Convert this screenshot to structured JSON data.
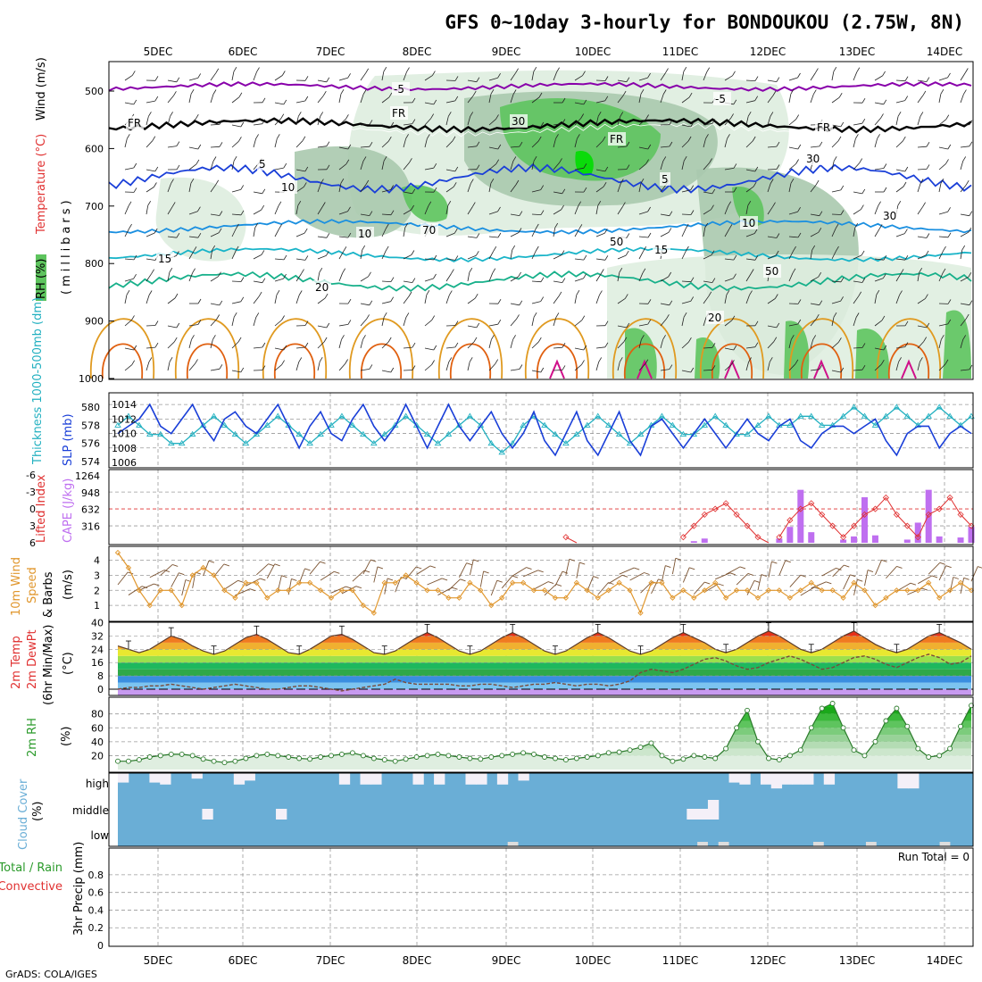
{
  "title": "GFS 0~10day 3-hourly for BONDOUKOU (2.75W, 8N)",
  "credit": "GrADS: COLA/IGES",
  "dates": [
    "5DEC",
    "6DEC",
    "7DEC",
    "8DEC",
    "9DEC",
    "10DEC",
    "11DEC",
    "12DEC",
    "13DEC",
    "14DEC"
  ],
  "colors": {
    "rh_light": "#dfeee0",
    "rh_mid": "#aac9ae",
    "rh_green": "#5ec45e",
    "rh_bright": "#00dd00",
    "temp_m5": "#8800aa",
    "temp_fr": "#000000",
    "temp_5": "#1a3fd8",
    "temp_10": "#1a8fe0",
    "temp_15": "#19b4c8",
    "temp_20": "#17b08a",
    "temp_hot": "#e09a20",
    "temp_hotter": "#e06010",
    "slp": "#1a3fd8",
    "thickness": "#22b0c0",
    "li": "#e03030",
    "cape": "#bf6ff0",
    "wind10": "#e0962c",
    "cloud": "#6aaed6",
    "cloud_gap": "#f4f0f8",
    "rh2m_line": "#2a7a2a"
  },
  "panels": {
    "upper": {
      "y_label_rh": "RH (%)",
      "y_label_temp": "Temperature (°C)",
      "y_label_wind": "Wind (m/s)",
      "y_label_unit": "(millibars)",
      "y_ticks": [
        "500",
        "600",
        "700",
        "800",
        "900",
        "1000"
      ],
      "contour_labels": {
        "m5": "-5",
        "fr": "FR",
        "t5": "5",
        "t10": "10",
        "t15": "15",
        "t20": "20",
        "rh30": "30",
        "rh50": "50",
        "rh70": "70",
        "rh10": "10"
      }
    },
    "slp": {
      "y_label_thick": "Thickness 1000-500mb (dm)",
      "y_label_slp": "SLP (mb)",
      "thick_ticks": [
        "580",
        "578",
        "576",
        "574"
      ],
      "slp_ticks": [
        "1014",
        "1012",
        "1010",
        "1008",
        "1006"
      ]
    },
    "li": {
      "y_label_li": "Lifted Index",
      "y_label_cape": "CAPE (J/kg)",
      "li_ticks": [
        "-6",
        "-3",
        "0",
        "3",
        "6"
      ],
      "cape_ticks": [
        "1264",
        "948",
        "632",
        "316"
      ]
    },
    "wind10": {
      "y_label": "10m Wind Speed & Barbs (m/s)",
      "y_ticks": [
        "4",
        "3",
        "2",
        "1"
      ]
    },
    "temp2m": {
      "y_label": "2m Temp 2m DewPt (6hr Min/Max) (°C)",
      "y_ticks": [
        "40",
        "32",
        "24",
        "16",
        "8",
        "0"
      ]
    },
    "rh2m": {
      "y_label": "2m RH (%)",
      "y_ticks": [
        "80",
        "60",
        "40",
        "20"
      ]
    },
    "cloud": {
      "y_label": "Cloud Cover (%)",
      "levels": [
        "high",
        "middle",
        "low"
      ]
    },
    "precip": {
      "y_label_a": "Total / Rain",
      "y_label_b": "Convective",
      "y_label_c": "3hr Precip (mm)",
      "y_ticks": [
        "0.8",
        "0.6",
        "0.4",
        "0.2",
        "0"
      ],
      "run_total": "Run Total = 0"
    }
  },
  "chart_data": {
    "type": "meteogram",
    "x_unit": "3-hourly steps from 4 DEC 12Z",
    "slp_mb": [
      1010,
      1011,
      1012,
      1014,
      1011,
      1010,
      1012,
      1014,
      1011,
      1009,
      1012,
      1013,
      1011,
      1010,
      1012,
      1014,
      1011,
      1008,
      1011,
      1013,
      1010,
      1009,
      1012,
      1014,
      1011,
      1009,
      1011,
      1014,
      1011,
      1008,
      1011,
      1014,
      1011,
      1009,
      1011,
      1013,
      1010,
      1008,
      1010,
      1013,
      1009,
      1007,
      1010,
      1013,
      1009,
      1007,
      1010,
      1013,
      1009,
      1007,
      1011,
      1012,
      1010,
      1008,
      1010,
      1012,
      1010,
      1008,
      1010,
      1012,
      1010,
      1009,
      1011,
      1012,
      1009,
      1008,
      1010,
      1011,
      1011,
      1010,
      1011,
      1012,
      1009,
      1007,
      1010,
      1011,
      1011,
      1008,
      1010,
      1011,
      1010
    ],
    "thickness_dm": [
      578,
      579,
      578,
      577,
      577,
      576,
      576,
      577,
      578,
      579,
      578,
      577,
      576,
      577,
      578,
      579,
      578,
      577,
      576,
      577,
      578,
      579,
      578,
      577,
      576,
      577,
      578,
      579,
      578,
      577,
      576,
      577,
      578,
      579,
      578,
      576,
      575,
      576,
      578,
      579,
      578,
      577,
      576,
      577,
      578,
      579,
      578,
      577,
      576,
      577,
      578,
      579,
      578,
      577,
      577,
      578,
      579,
      578,
      577,
      577,
      578,
      579,
      578,
      578,
      579,
      579,
      578,
      578,
      579,
      580,
      579,
      578,
      579,
      580,
      579,
      578,
      579,
      580,
      579,
      578,
      579
    ],
    "lifted_index": [
      6,
      6,
      6,
      6,
      6,
      6,
      6,
      6,
      6,
      6,
      6,
      6,
      6,
      6,
      6,
      6,
      6,
      6,
      6,
      6,
      6,
      6,
      6,
      6,
      6,
      6,
      6,
      6,
      6,
      6,
      6,
      6,
      6,
      6,
      6,
      6,
      6,
      6,
      6,
      6,
      6,
      6,
      5,
      6,
      6,
      6,
      6,
      6,
      6,
      6,
      6,
      6,
      6,
      5,
      3,
      1,
      0,
      -1,
      1,
      3,
      5,
      6,
      5,
      2,
      0,
      -1,
      1,
      3,
      5,
      3,
      1,
      0,
      -2,
      1,
      3,
      5,
      1,
      0,
      -2,
      1,
      3
    ],
    "cape_jkg": [
      0,
      0,
      0,
      0,
      0,
      0,
      0,
      0,
      0,
      0,
      0,
      0,
      0,
      0,
      0,
      0,
      0,
      0,
      0,
      0,
      0,
      0,
      0,
      0,
      0,
      0,
      0,
      0,
      0,
      0,
      0,
      0,
      0,
      0,
      0,
      0,
      0,
      0,
      0,
      0,
      0,
      0,
      0,
      0,
      0,
      0,
      0,
      0,
      0,
      0,
      0,
      0,
      0,
      0,
      30,
      80,
      0,
      0,
      0,
      0,
      0,
      0,
      80,
      300,
      1000,
      200,
      0,
      0,
      60,
      120,
      860,
      140,
      0,
      0,
      60,
      380,
      1000,
      120,
      0,
      100,
      300
    ],
    "wind10_ms": [
      4.5,
      3.5,
      2.0,
      1.0,
      2.0,
      2.0,
      1.0,
      3.0,
      3.5,
      3.0,
      2.0,
      1.5,
      2.5,
      2.5,
      1.5,
      2.0,
      2.0,
      2.5,
      2.5,
      2.0,
      1.5,
      2.0,
      2.0,
      1.0,
      0.5,
      2.5,
      2.5,
      3.0,
      2.5,
      2.0,
      2.0,
      1.5,
      1.5,
      2.5,
      2.0,
      1.0,
      1.5,
      2.5,
      2.5,
      2.0,
      2.0,
      1.5,
      1.5,
      2.5,
      2.0,
      1.5,
      2.0,
      2.5,
      2.0,
      0.5,
      2.5,
      2.5,
      1.5,
      2.0,
      1.5,
      2.0,
      2.5,
      1.5,
      2.0,
      2.0,
      1.5,
      2.0,
      2.0,
      1.5,
      2.0,
      2.5,
      2.0,
      2.0,
      1.5,
      2.5,
      2.0,
      1.0,
      1.5,
      2.0,
      2.0,
      2.0,
      2.5,
      1.5,
      2.0,
      2.5,
      2.0
    ],
    "temp2m_c": [
      26,
      24,
      22,
      24,
      28,
      32,
      30,
      26,
      23,
      21,
      23,
      27,
      31,
      33,
      30,
      26,
      22,
      21,
      24,
      28,
      32,
      33,
      30,
      26,
      22,
      21,
      23,
      27,
      31,
      34,
      31,
      27,
      23,
      21,
      23,
      27,
      31,
      34,
      31,
      27,
      23,
      21,
      23,
      27,
      31,
      34,
      31,
      27,
      23,
      21,
      23,
      27,
      31,
      34,
      31,
      28,
      24,
      22,
      24,
      28,
      32,
      35,
      32,
      28,
      24,
      22,
      24,
      28,
      32,
      35,
      31,
      27,
      24,
      22,
      24,
      28,
      32,
      34,
      31,
      28,
      24
    ],
    "dewpt2m_c": [
      0,
      1,
      1,
      2,
      2,
      3,
      2,
      1,
      0,
      1,
      2,
      3,
      2,
      1,
      0,
      0,
      1,
      2,
      2,
      1,
      0,
      -1,
      0,
      1,
      2,
      3,
      6,
      4,
      3,
      3,
      3,
      3,
      2,
      2,
      3,
      3,
      2,
      1,
      2,
      3,
      3,
      4,
      3,
      2,
      3,
      3,
      2,
      3,
      5,
      10,
      12,
      11,
      10,
      12,
      15,
      18,
      19,
      17,
      14,
      12,
      13,
      16,
      18,
      20,
      18,
      15,
      12,
      13,
      16,
      19,
      20,
      18,
      15,
      13,
      16,
      19,
      21,
      19,
      15,
      16,
      20
    ],
    "rh2m_pct": [
      12,
      12,
      14,
      18,
      20,
      22,
      22,
      20,
      15,
      12,
      10,
      12,
      16,
      20,
      22,
      20,
      18,
      16,
      15,
      18,
      20,
      22,
      24,
      20,
      16,
      14,
      12,
      15,
      18,
      20,
      22,
      20,
      18,
      16,
      15,
      18,
      20,
      22,
      24,
      22,
      18,
      16,
      14,
      16,
      18,
      20,
      24,
      25,
      28,
      32,
      38,
      20,
      12,
      15,
      20,
      18,
      16,
      30,
      60,
      85,
      40,
      16,
      14,
      20,
      28,
      60,
      88,
      95,
      60,
      28,
      20,
      40,
      70,
      88,
      62,
      30,
      18,
      20,
      30,
      62,
      92
    ],
    "cloud_high_pct": [
      70,
      100,
      100,
      70,
      60,
      100,
      100,
      90,
      100,
      100,
      100,
      60,
      80,
      100,
      100,
      100,
      100,
      100,
      100,
      100,
      100,
      60,
      100,
      60,
      60,
      100,
      100,
      100,
      60,
      100,
      60,
      100,
      100,
      60,
      60,
      100,
      60,
      100,
      80,
      100,
      100,
      100,
      100,
      100,
      100,
      100,
      100,
      100,
      100,
      100,
      100,
      100,
      100,
      100,
      100,
      100,
      100,
      100,
      70,
      60,
      100,
      60,
      40,
      60,
      60,
      60,
      100,
      60,
      100,
      100,
      100,
      100,
      100,
      100,
      40,
      40,
      100,
      100,
      100,
      100,
      100
    ],
    "cloud_mid_pct": [
      100,
      100,
      100,
      100,
      100,
      100,
      100,
      100,
      60,
      100,
      100,
      100,
      100,
      100,
      100,
      60,
      100,
      100,
      100,
      100,
      100,
      100,
      100,
      100,
      100,
      100,
      100,
      100,
      100,
      100,
      100,
      100,
      100,
      100,
      100,
      100,
      100,
      100,
      100,
      100,
      100,
      100,
      100,
      100,
      100,
      100,
      100,
      100,
      100,
      100,
      100,
      100,
      100,
      100,
      60,
      60,
      0,
      100,
      100,
      100,
      100,
      100,
      100,
      100,
      100,
      100,
      100,
      100,
      100,
      100,
      100,
      100,
      100,
      100,
      100,
      100,
      100,
      100,
      100,
      100,
      100
    ],
    "precip_mm": [
      0,
      0,
      0,
      0,
      0,
      0,
      0,
      0,
      0,
      0
    ]
  }
}
